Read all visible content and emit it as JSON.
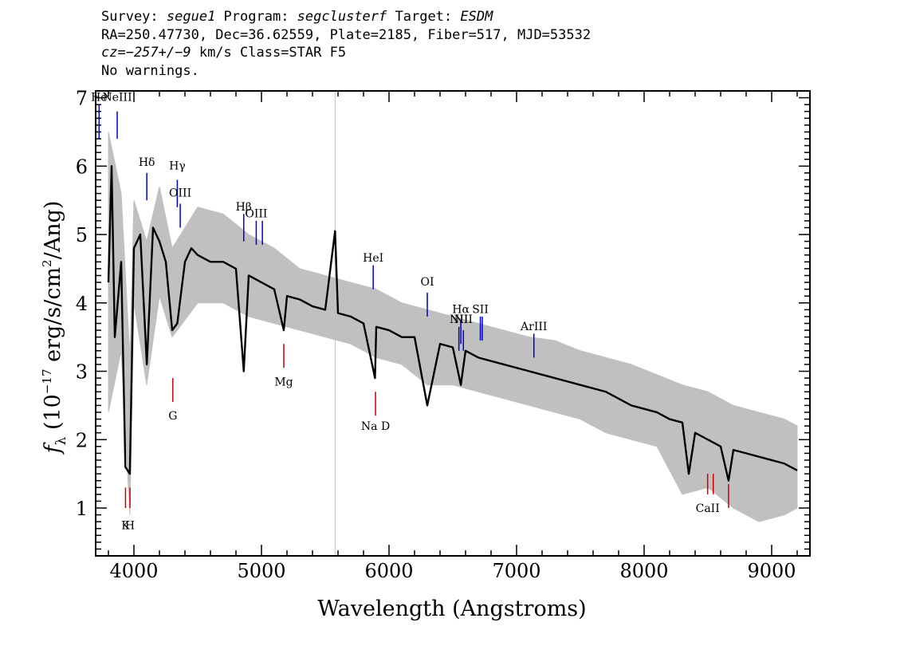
{
  "header": {
    "line1": {
      "survey_label": "Survey: ",
      "survey": "segue1",
      "program_label": " Program: ",
      "program": "segclusterf",
      "target_label": " Target: ",
      "target": "ESDM"
    },
    "line2": "RA=250.47730, Dec=36.62559, Plate=2185, Fiber=517, MJD=53532",
    "line3": {
      "cz": "cz=−257+/−9",
      "rest": " km/s Class=STAR F5"
    },
    "line4": "No warnings."
  },
  "chart_data": {
    "type": "line",
    "xlabel": "Wavelength (Angstroms)",
    "ylabel_parts": {
      "f": "f",
      "sub": "λ",
      "a": " (10",
      "exp": "−17",
      "b": " erg/s/cm",
      "exp2": "2",
      "c": "/Ang)"
    },
    "xlim": [
      3700,
      9300
    ],
    "ylim": [
      0.3,
      7.1
    ],
    "xticks": [
      4000,
      5000,
      6000,
      7000,
      8000,
      9000
    ],
    "yticks": [
      1,
      2,
      3,
      4,
      5,
      6,
      7
    ],
    "sky_line": 5577,
    "series": [
      {
        "role": "flux",
        "color": "#000000",
        "x": [
          3800,
          3825,
          3850,
          3900,
          3933,
          3968,
          4000,
          4050,
          4101,
          4150,
          4200,
          4250,
          4300,
          4340,
          4400,
          4450,
          4500,
          4600,
          4700,
          4800,
          4861,
          4900,
          5000,
          5100,
          5175,
          5200,
          5300,
          5400,
          5500,
          5577,
          5600,
          5700,
          5800,
          5890,
          5900,
          6000,
          6100,
          6200,
          6300,
          6400,
          6500,
          6563,
          6600,
          6700,
          6800,
          6900,
          7000,
          7100,
          7200,
          7300,
          7400,
          7500,
          7600,
          7700,
          7800,
          7900,
          8000,
          8100,
          8200,
          8300,
          8350,
          8400,
          8500,
          8600,
          8662,
          8700,
          8800,
          8900,
          9000,
          9100,
          9200
        ],
        "y": [
          4.3,
          6.0,
          3.5,
          4.6,
          1.6,
          1.5,
          4.8,
          5.0,
          3.1,
          5.1,
          4.9,
          4.6,
          3.6,
          3.7,
          4.6,
          4.8,
          4.7,
          4.6,
          4.6,
          4.5,
          3.0,
          4.4,
          4.3,
          4.2,
          3.6,
          4.1,
          4.05,
          3.95,
          3.9,
          5.05,
          3.85,
          3.8,
          3.7,
          2.9,
          3.65,
          3.6,
          3.5,
          3.5,
          2.5,
          3.4,
          3.35,
          2.8,
          3.3,
          3.2,
          3.15,
          3.1,
          3.05,
          3.0,
          2.95,
          2.9,
          2.85,
          2.8,
          2.75,
          2.7,
          2.6,
          2.5,
          2.45,
          2.4,
          2.3,
          2.25,
          1.5,
          2.1,
          2.0,
          1.9,
          1.4,
          1.85,
          1.8,
          1.75,
          1.7,
          1.65,
          1.55
        ]
      },
      {
        "role": "error",
        "color": "#c0c0c0",
        "x": [
          3800,
          3900,
          3968,
          4000,
          4100,
          4200,
          4300,
          4500,
          4700,
          4900,
          5100,
          5300,
          5500,
          5700,
          5900,
          6100,
          6300,
          6500,
          6700,
          6900,
          7100,
          7300,
          7500,
          7700,
          7900,
          8100,
          8300,
          8500,
          8700,
          8900,
          9100,
          9200
        ],
        "hi": [
          6.5,
          5.6,
          3.2,
          5.5,
          4.9,
          5.7,
          4.8,
          5.4,
          5.3,
          5.0,
          4.8,
          4.5,
          4.4,
          4.3,
          4.2,
          4.0,
          3.9,
          3.8,
          3.7,
          3.6,
          3.5,
          3.45,
          3.3,
          3.2,
          3.1,
          2.95,
          2.8,
          2.7,
          2.5,
          2.4,
          2.3,
          2.2
        ],
        "lo": [
          2.4,
          3.3,
          0.9,
          4.0,
          2.8,
          4.1,
          3.5,
          4.0,
          4.0,
          3.8,
          3.7,
          3.6,
          3.5,
          3.4,
          3.2,
          3.1,
          2.8,
          2.8,
          2.7,
          2.6,
          2.5,
          2.4,
          2.3,
          2.1,
          2.0,
          1.9,
          1.2,
          1.3,
          1.0,
          0.8,
          0.9,
          1.0
        ]
      }
    ],
    "emission_lines": [
      {
        "label": "He",
        "x": 3727,
        "y0": 6.4,
        "y1": 6.9,
        "label_y": 7.0
      },
      {
        "label": "NeIII",
        "x": 3869,
        "y0": 6.4,
        "y1": 6.8,
        "label_y": 7.0
      },
      {
        "label": "Hδ",
        "x": 4101,
        "y0": 5.5,
        "y1": 5.9,
        "label_y": 6.05
      },
      {
        "label": "Hγ",
        "x": 4340,
        "y0": 5.4,
        "y1": 5.8,
        "label_y": 6.0
      },
      {
        "label": "OIII",
        "x": 4363,
        "y0": 5.1,
        "y1": 5.45,
        "label_y": 5.6
      },
      {
        "label": "Hβ",
        "x": 4861,
        "y0": 4.9,
        "y1": 5.3,
        "label_y": 5.4
      },
      {
        "label": "OIII",
        "x": 4959,
        "y0": 4.85,
        "y1": 5.2,
        "label_y": 5.3
      },
      {
        "label": "",
        "x": 5007,
        "y0": 4.85,
        "y1": 5.2,
        "label_y": 5.3
      },
      {
        "label": "HeI",
        "x": 5876,
        "y0": 4.2,
        "y1": 4.55,
        "label_y": 4.65
      },
      {
        "label": "OI",
        "x": 6300,
        "y0": 3.8,
        "y1": 4.15,
        "label_y": 4.3
      },
      {
        "label": "NII",
        "x": 6548,
        "y0": 3.3,
        "y1": 3.65,
        "label_y": 3.75
      },
      {
        "label": "Hα",
        "x": 6563,
        "y0": 3.4,
        "y1": 3.75,
        "label_y": 3.9
      },
      {
        "label": "NII",
        "x": 6583,
        "y0": 3.3,
        "y1": 3.6,
        "label_y": 3.75
      },
      {
        "label": "SII",
        "x": 6716,
        "y0": 3.45,
        "y1": 3.8,
        "label_y": 3.9
      },
      {
        "label": "",
        "x": 6731,
        "y0": 3.45,
        "y1": 3.8,
        "label_y": 3.9
      },
      {
        "label": "ArIII",
        "x": 7136,
        "y0": 3.2,
        "y1": 3.55,
        "label_y": 3.65
      }
    ],
    "absorption_lines": [
      {
        "label": "K",
        "x": 3934,
        "y0": 1.0,
        "y1": 1.3,
        "label_y": 0.75
      },
      {
        "label": "H",
        "x": 3969,
        "y0": 1.0,
        "y1": 1.3,
        "label_y": 0.75
      },
      {
        "label": "G",
        "x": 4305,
        "y0": 2.55,
        "y1": 2.9,
        "label_y": 2.35
      },
      {
        "label": "Mg",
        "x": 5175,
        "y0": 3.05,
        "y1": 3.4,
        "label_y": 2.85
      },
      {
        "label": "Na D",
        "x": 5894,
        "y0": 2.35,
        "y1": 2.7,
        "label_y": 2.2
      },
      {
        "label": "CaII",
        "x": 8498,
        "y0": 1.2,
        "y1": 1.5,
        "label_y": 1.0
      },
      {
        "label": "",
        "x": 8542,
        "y0": 1.2,
        "y1": 1.5,
        "label_y": 1.0
      },
      {
        "label": "",
        "x": 8662,
        "y0": 1.0,
        "y1": 1.35,
        "label_y": 1.0
      }
    ],
    "colors": {
      "emission": "#0000cc",
      "absorption": "#cc0000",
      "sky": "#c0c0c0",
      "frame": "#000000"
    }
  }
}
